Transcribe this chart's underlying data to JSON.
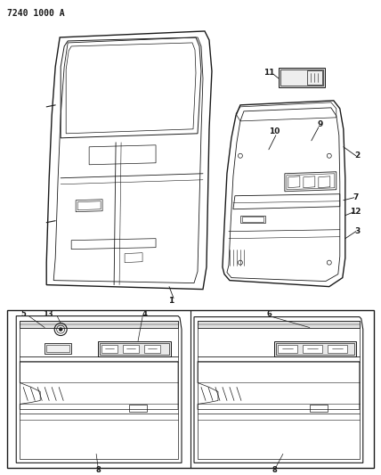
{
  "title": "7240 1000 A",
  "bg_color": "#ffffff",
  "line_color": "#1a1a1a",
  "fig_width": 4.28,
  "fig_height": 5.33,
  "dpi": 100
}
